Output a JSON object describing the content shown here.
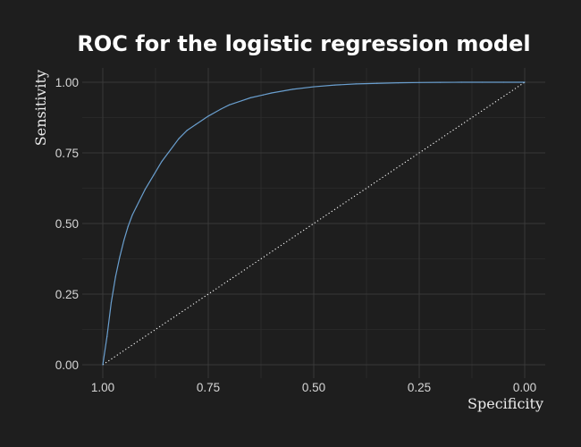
{
  "chart_data": {
    "type": "line",
    "title": "ROC for the logistic regression model",
    "xlabel": "Specificity",
    "ylabel": "Sensitivity",
    "x_reversed": true,
    "xlim": [
      1.0,
      0.0
    ],
    "ylim": [
      0.0,
      1.0
    ],
    "x_ticks": [
      "1.00",
      "0.75",
      "0.50",
      "0.25",
      "0.00"
    ],
    "y_ticks": [
      "0.00",
      "0.25",
      "0.50",
      "0.75",
      "1.00"
    ],
    "grid": true,
    "series": [
      {
        "specificity": [
          1.0,
          0.99,
          0.98,
          0.97,
          0.96,
          0.95,
          0.94,
          0.93,
          0.92,
          0.9,
          0.88,
          0.86,
          0.84,
          0.82,
          0.8,
          0.78,
          0.75,
          0.72,
          0.7,
          0.67,
          0.65,
          0.62,
          0.6,
          0.55,
          0.5,
          0.45,
          0.4,
          0.35,
          0.3,
          0.25,
          0.2,
          0.15,
          0.1,
          0.05,
          0.0
        ],
        "sensitivity": [
          0.0,
          0.1,
          0.22,
          0.31,
          0.38,
          0.44,
          0.49,
          0.53,
          0.56,
          0.62,
          0.67,
          0.72,
          0.76,
          0.8,
          0.83,
          0.85,
          0.88,
          0.905,
          0.92,
          0.935,
          0.945,
          0.955,
          0.962,
          0.975,
          0.984,
          0.99,
          0.994,
          0.996,
          0.998,
          0.999,
          0.9995,
          1.0,
          1.0,
          1.0,
          1.0
        ],
        "color": "#6a9fcf"
      },
      {
        "specificity": [
          1.0,
          0.0
        ],
        "sensitivity": [
          0.0,
          1.0
        ],
        "style": "dotted",
        "color": "#ffffff"
      }
    ]
  },
  "colors": {
    "background": "#1e1e1e",
    "grid_major": "#383838",
    "grid_minor": "#2c2c2c",
    "roc_line": "#6a9fcf",
    "reference_line": "#ffffff"
  }
}
